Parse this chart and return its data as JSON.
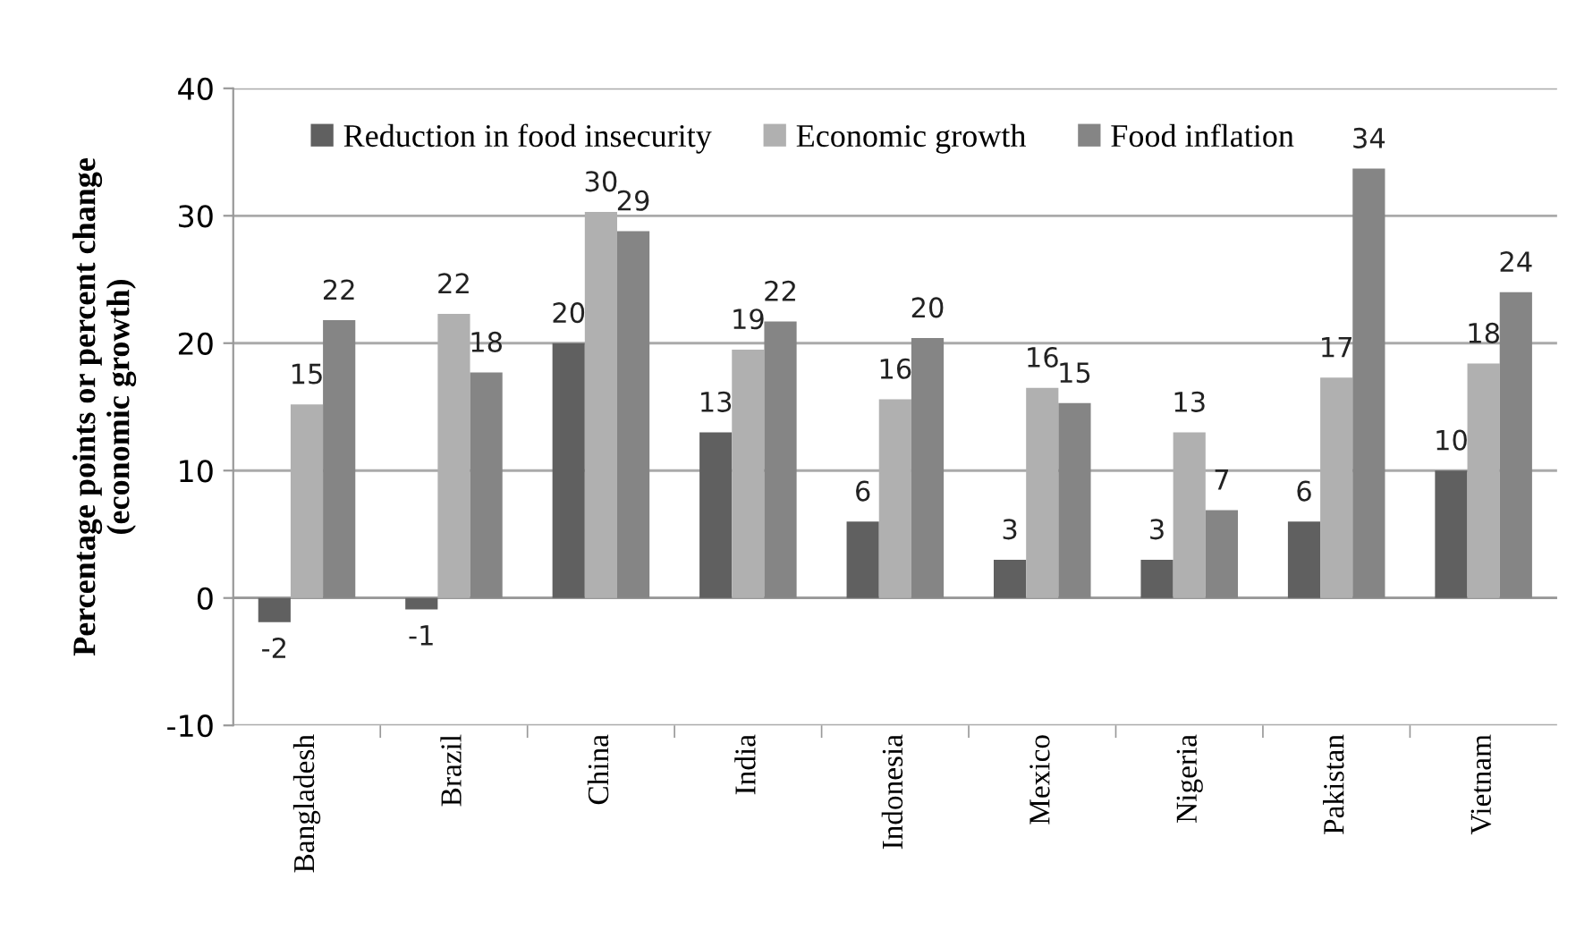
{
  "chart_data": {
    "type": "bar",
    "ylabel": "Percentage points or percent change\n(economic growth)",
    "categories": [
      "Bangladesh",
      "Brazil",
      "China",
      "India",
      "Indonesia",
      "Mexico",
      "Nigeria",
      "Pakistan",
      "Vietnam"
    ],
    "series": [
      {
        "name": "Reduction in food insecurity",
        "color": "#606060",
        "values": [
          -1.9,
          -0.9,
          20.0,
          13.0,
          6.0,
          3.0,
          3.0,
          6.0,
          10.0
        ],
        "value_labels": [
          "-2",
          "-1",
          "20",
          "13",
          "6",
          "3",
          "3",
          "6",
          "10"
        ]
      },
      {
        "name": "Economic growth",
        "color": "#b0b0b0",
        "values": [
          15.2,
          22.3,
          30.3,
          19.5,
          15.6,
          16.5,
          13.0,
          17.3,
          18.4
        ],
        "value_labels": [
          "15",
          "22",
          "30",
          "19",
          "16",
          "16",
          "13",
          "17",
          "18"
        ]
      },
      {
        "name": "Food inflation",
        "color": "#858585",
        "values": [
          21.8,
          17.7,
          28.8,
          21.7,
          20.4,
          15.3,
          6.9,
          33.7,
          24.0
        ],
        "value_labels": [
          "22",
          "18",
          "29",
          "22",
          "20",
          "15",
          "7",
          "34",
          "24"
        ]
      }
    ],
    "ylim": [
      -10,
      40
    ],
    "yticks": [
      -10,
      0,
      10,
      20,
      30,
      40
    ],
    "grid": "y",
    "legend": "top"
  }
}
